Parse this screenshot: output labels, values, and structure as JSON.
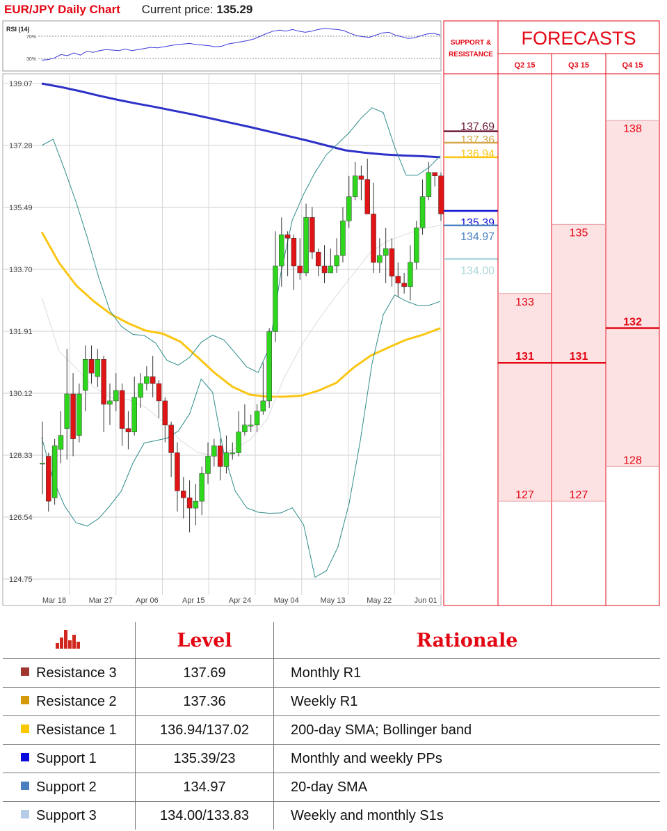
{
  "header": {
    "title": "EUR/JPY Daily Chart",
    "price_label": "Current price:",
    "price": "135.29"
  },
  "rsi": {
    "label": "RSI (14)",
    "levels": [
      "70%",
      "30%"
    ],
    "values": [
      27,
      28,
      31,
      37,
      35,
      40,
      36,
      43,
      41,
      44,
      46,
      45,
      44,
      47,
      44,
      46,
      48,
      50,
      49,
      51,
      53,
      55,
      56,
      57,
      55,
      54,
      53,
      51,
      52,
      56,
      58,
      60,
      62,
      65,
      70,
      75,
      79,
      81,
      79,
      82,
      79,
      77,
      79,
      82,
      84,
      83,
      82,
      80,
      75,
      71,
      69,
      68,
      72,
      76,
      77,
      72,
      69,
      66,
      67,
      71,
      74,
      75,
      72
    ]
  },
  "chart_data": {
    "type": "candlestick",
    "y_ticks": [
      "139.07",
      "137.28",
      "135.49",
      "133.70",
      "131.91",
      "130.12",
      "128.33",
      "126.54",
      "124.75"
    ],
    "ylim": [
      124.75,
      139.07
    ],
    "x_ticks": [
      "Mar 18",
      "Mar 27",
      "Apr 06",
      "Apr 15",
      "Apr 24",
      "May 04",
      "May 13",
      "May 22",
      "Jun 01"
    ],
    "candles": [
      [
        128.1,
        128.1,
        129.3,
        127.2
      ],
      [
        128.3,
        127.0,
        128.4,
        126.7
      ],
      [
        127.1,
        128.6,
        128.8,
        126.9
      ],
      [
        128.5,
        128.9,
        129.6,
        128.1
      ],
      [
        129.1,
        130.1,
        131.4,
        128.2
      ],
      [
        130.1,
        128.8,
        130.7,
        128.3
      ],
      [
        128.9,
        130.1,
        130.4,
        128.7
      ],
      [
        130.2,
        131.1,
        131.5,
        129.6
      ],
      [
        131.1,
        130.7,
        131.5,
        130.4
      ],
      [
        130.6,
        131.1,
        131.4,
        130.3
      ],
      [
        131.1,
        129.8,
        131.2,
        129.0
      ],
      [
        129.8,
        129.9,
        130.4,
        129.2
      ],
      [
        129.9,
        130.2,
        130.7,
        129.6
      ],
      [
        130.2,
        129.1,
        130.4,
        128.6
      ],
      [
        129.1,
        129.0,
        129.6,
        128.5
      ],
      [
        129.0,
        130.0,
        130.6,
        128.9
      ],
      [
        130.0,
        130.4,
        130.7,
        129.7
      ],
      [
        130.4,
        130.6,
        130.9,
        130.2
      ],
      [
        130.6,
        130.4,
        131.2,
        130.0
      ],
      [
        130.4,
        129.9,
        130.5,
        129.4
      ],
      [
        129.9,
        129.2,
        130.0,
        128.7
      ],
      [
        129.2,
        128.4,
        129.3,
        127.7
      ],
      [
        128.4,
        127.3,
        128.7,
        126.7
      ],
      [
        127.3,
        127.1,
        127.7,
        126.5
      ],
      [
        127.1,
        126.8,
        127.6,
        126.1
      ],
      [
        126.8,
        127.0,
        127.5,
        126.3
      ],
      [
        127.0,
        127.8,
        128.0,
        126.6
      ],
      [
        127.8,
        128.3,
        128.7,
        127.5
      ],
      [
        128.3,
        128.6,
        128.8,
        128.0
      ],
      [
        128.6,
        128.0,
        128.8,
        127.6
      ],
      [
        128.0,
        128.4,
        128.9,
        127.8
      ],
      [
        128.4,
        128.4,
        128.7,
        128.2
      ],
      [
        128.4,
        129.0,
        129.6,
        128.3
      ],
      [
        129.0,
        129.2,
        129.8,
        128.9
      ],
      [
        129.2,
        129.2,
        129.5,
        129.0
      ],
      [
        129.2,
        129.6,
        129.8,
        129.0
      ],
      [
        129.6,
        129.9,
        131.0,
        129.5
      ],
      [
        129.9,
        131.9,
        132.0,
        129.7
      ],
      [
        131.9,
        133.8,
        134.8,
        131.6
      ],
      [
        133.8,
        134.7,
        135.2,
        133.2
      ],
      [
        134.7,
        134.6,
        134.8,
        133.5
      ],
      [
        134.6,
        133.8,
        134.7,
        133.1
      ],
      [
        133.8,
        133.6,
        134.6,
        133.4
      ],
      [
        133.6,
        135.2,
        135.6,
        133.5
      ],
      [
        135.2,
        134.2,
        135.5,
        134.0
      ],
      [
        134.2,
        133.8,
        134.3,
        133.5
      ],
      [
        133.8,
        133.6,
        134.4,
        133.3
      ],
      [
        133.6,
        133.8,
        134.3,
        133.6
      ],
      [
        133.8,
        134.1,
        134.6,
        133.6
      ],
      [
        134.1,
        135.1,
        135.5,
        133.9
      ],
      [
        135.1,
        135.8,
        136.4,
        134.9
      ],
      [
        135.8,
        136.4,
        136.8,
        135.7
      ],
      [
        136.4,
        136.3,
        136.7,
        135.7
      ],
      [
        136.3,
        135.3,
        136.9,
        135.3
      ],
      [
        135.3,
        133.9,
        136.2,
        133.6
      ],
      [
        133.9,
        134.1,
        134.6,
        133.6
      ],
      [
        134.1,
        134.3,
        134.9,
        133.3
      ],
      [
        134.3,
        133.5,
        134.6,
        133.2
      ],
      [
        133.5,
        133.3,
        133.9,
        132.9
      ],
      [
        133.3,
        133.2,
        133.6,
        133.0
      ],
      [
        133.2,
        133.9,
        134.4,
        132.8
      ],
      [
        133.9,
        134.9,
        135.1,
        133.7
      ],
      [
        134.9,
        135.8,
        136.3,
        134.7
      ],
      [
        135.8,
        136.5,
        136.8,
        135.7
      ],
      [
        136.5,
        136.4,
        136.5,
        136.1
      ],
      [
        136.4,
        135.3,
        136.5,
        135.1
      ]
    ],
    "series": [
      {
        "name": "200-day SMA",
        "color": "#2d31c8",
        "values": [
          139.07,
          138.97,
          138.85,
          138.72,
          138.6,
          138.49,
          138.39,
          138.28,
          138.17,
          138.05,
          137.93,
          137.81,
          137.68,
          137.55,
          137.42,
          137.28,
          137.14,
          137.07,
          137.02,
          136.99,
          136.97,
          136.94
        ]
      },
      {
        "name": "55-day SMA",
        "color": "#fbc613",
        "values": [
          134.78,
          133.89,
          133.23,
          132.78,
          132.4,
          132.14,
          131.93,
          131.84,
          131.61,
          131.16,
          130.7,
          130.31,
          130.08,
          130.02,
          130.02,
          130.05,
          130.2,
          130.42,
          130.86,
          131.21,
          131.44,
          131.66,
          131.81,
          132.0
        ]
      },
      {
        "name": "20-day SMA",
        "color": "#dcdcdc",
        "values": [
          132.89,
          131.33,
          130.84,
          130.3,
          129.99,
          129.94,
          129.71,
          129.3,
          128.76,
          128.41,
          128.32,
          128.48,
          128.77,
          129.36,
          130.58,
          131.51,
          132.26,
          132.94,
          133.58,
          134.21,
          134.53,
          134.71,
          134.88,
          134.97
        ]
      },
      {
        "name": "Upper Bollinger band",
        "color": "#2e8b8b",
        "values": [
          137.28,
          137.46,
          136.59,
          135.66,
          134.62,
          133.47,
          132.5,
          132.05,
          131.82,
          131.79,
          131.57,
          131.07,
          130.93,
          131.16,
          131.59,
          131.8,
          131.66,
          131.28,
          130.88,
          130.72,
          131.44,
          133.59,
          135.12,
          135.87,
          136.5,
          137.01,
          137.33,
          137.65,
          138.05,
          138.37,
          138.23,
          137.23,
          136.42,
          136.42,
          136.64,
          136.98
        ]
      },
      {
        "name": "Lower Bollinger band",
        "color": "#2e8b8b",
        "values": [
          128.84,
          127.64,
          126.87,
          126.38,
          126.28,
          126.5,
          126.87,
          127.3,
          128.1,
          128.68,
          128.75,
          128.82,
          129.03,
          129.53,
          130.53,
          130.15,
          128.38,
          127.29,
          126.81,
          126.68,
          126.65,
          126.66,
          126.81,
          126.32,
          124.8,
          124.99,
          125.67,
          126.94,
          128.79,
          130.96,
          132.39,
          132.96,
          132.78,
          132.66,
          132.66,
          132.77
        ]
      }
    ],
    "sr_levels": [
      {
        "label": "137.69",
        "value": 137.69,
        "color": "#6d1a36"
      },
      {
        "label": "137.36",
        "value": 137.36,
        "color": "#d5a64a"
      },
      {
        "label": "136.94",
        "value": 136.94,
        "color": "#fbc613"
      },
      {
        "label": "135.39",
        "value": 135.39,
        "color": "#1010d0"
      },
      {
        "label": "134.97",
        "value": 134.97,
        "color": "#4b81c0"
      },
      {
        "label": "134.00",
        "value": 134.0,
        "color": "#aed7d8"
      }
    ],
    "forecasts": [
      {
        "quarter": "Q2 15",
        "top": "133",
        "mid": "131",
        "bottom": "127",
        "top_value": 133,
        "mid_value": 131,
        "bottom_value": 127
      },
      {
        "quarter": "Q3 15",
        "top": "135",
        "mid": "131",
        "bottom": "127",
        "top_value": 135,
        "mid_value": 131,
        "bottom_value": 127
      },
      {
        "quarter": "Q4 15",
        "top": "138",
        "mid": "132",
        "bottom": "128",
        "top_value": 138,
        "mid_value": 132,
        "bottom_value": 128
      }
    ]
  },
  "panel": {
    "sr_title_line1": "SUPPORT &",
    "sr_title_line2": "RESISTANCE",
    "forecasts_title": "FORECASTS"
  },
  "table": {
    "headers": {
      "icon": "bar-chart-icon",
      "level": "Level",
      "rationale": "Rationale"
    },
    "rows": [
      {
        "name": "Resistance 3",
        "level": "137.69",
        "rationale": "Monthly R1",
        "color": "#a0362f"
      },
      {
        "name": "Resistance 2",
        "level": "137.36",
        "rationale": "Weekly R1",
        "color": "#d49a0a"
      },
      {
        "name": "Resistance 1",
        "level": "136.94/137.02",
        "rationale": "200-day SMA; Bollinger band",
        "color": "#fbc800"
      },
      {
        "name": "Support 1",
        "level": "135.39/23",
        "rationale": "Monthly and weekly PPs",
        "color": "#0a0adc"
      },
      {
        "name": "Support 2",
        "level": "134.97",
        "rationale": "20-day SMA",
        "color": "#4a7fbf"
      },
      {
        "name": "Support 3",
        "level": "134.00/133.83",
        "rationale": "Weekly and monthly S1s",
        "color": "#b4cce6"
      }
    ]
  }
}
